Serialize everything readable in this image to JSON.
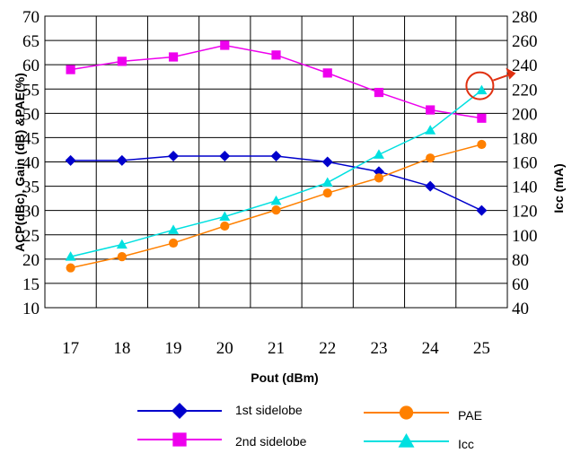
{
  "chart_data": {
    "type": "line",
    "title": "",
    "x": [
      17,
      18,
      19,
      20,
      21,
      22,
      23,
      24,
      25
    ],
    "xlabel": "Pout (dBm)",
    "ylabel_left": "ACP(dBc), Gain (dB) &PAE(%)",
    "ylabel_right": "Icc (mA)",
    "ylim_left": [
      10,
      70
    ],
    "ylim_right": [
      40,
      280
    ],
    "yticks_left": [
      10,
      15,
      20,
      25,
      30,
      35,
      40,
      45,
      50,
      55,
      60,
      65,
      70
    ],
    "yticks_right": [
      40,
      60,
      80,
      100,
      120,
      140,
      160,
      180,
      200,
      220,
      240,
      260,
      280
    ],
    "grid": true,
    "legend_position": "bottom",
    "series": [
      {
        "name": "1st sidelobe",
        "axis": "left",
        "color": "#0000cc",
        "marker": "diamond",
        "values": [
          40.3,
          40.3,
          41.2,
          41.2,
          41.2,
          40.0,
          38.0,
          35.0,
          30.0
        ]
      },
      {
        "name": "2nd sidelobe",
        "axis": "left",
        "color": "#ee00ee",
        "marker": "square",
        "values": [
          59.0,
          60.7,
          61.6,
          64.0,
          62.0,
          58.3,
          54.3,
          50.7,
          49.0
        ]
      },
      {
        "name": "PAE",
        "axis": "left",
        "color": "#ff8000",
        "marker": "circle",
        "values": [
          18.2,
          20.5,
          23.3,
          26.8,
          30.1,
          33.6,
          36.7,
          40.8,
          43.6
        ]
      },
      {
        "name": "Icc",
        "axis": "right",
        "color": "#00e0e0",
        "marker": "triangle",
        "values": [
          82,
          92,
          104,
          115,
          128,
          143,
          166,
          186,
          219
        ]
      }
    ],
    "annotation": {
      "type": "circle-arrow",
      "target_series": "Icc",
      "target_x": 25,
      "color": "#e03010"
    }
  }
}
